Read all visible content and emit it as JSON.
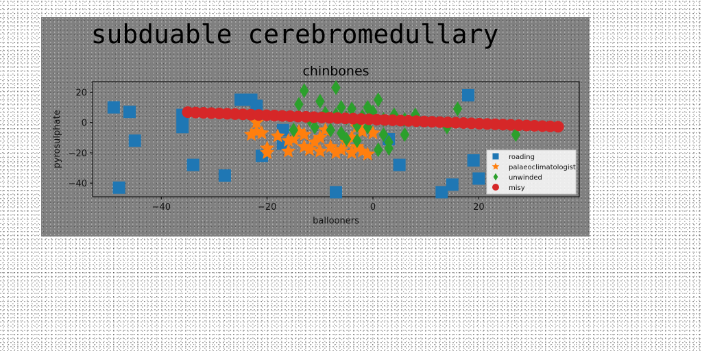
{
  "figure": {
    "suptitle": "subduable cerebromedullary"
  },
  "chart_data": {
    "type": "scatter",
    "title": "chinbones",
    "xlabel": "ballooners",
    "ylabel": "pyrosulphate",
    "xlim": [
      -53,
      39
    ],
    "ylim": [
      -49,
      27
    ],
    "xticks": [
      -40,
      -20,
      0,
      20
    ],
    "yticks": [
      20,
      0,
      -20,
      -40
    ],
    "grid": false,
    "legend_position": "right",
    "series": [
      {
        "name": "roading",
        "color": "#1f77b4",
        "marker": "square",
        "points": [
          [
            -49,
            10
          ],
          [
            -46,
            7
          ],
          [
            -45,
            -12
          ],
          [
            -48,
            -43
          ],
          [
            -36,
            5
          ],
          [
            -36,
            -3
          ],
          [
            -34,
            -28
          ],
          [
            -28,
            -35
          ],
          [
            -25,
            15
          ],
          [
            -23,
            15
          ],
          [
            -22,
            11
          ],
          [
            -21,
            -22
          ],
          [
            -17,
            -5
          ],
          [
            -17,
            -14
          ],
          [
            -7,
            -46
          ],
          [
            3,
            -11
          ],
          [
            5,
            -28
          ],
          [
            13,
            -46
          ],
          [
            15,
            -41
          ],
          [
            18,
            18
          ],
          [
            19,
            -25
          ],
          [
            20,
            -37
          ]
        ]
      },
      {
        "name": "palaeoclimatologist",
        "color": "#ff7f0e",
        "marker": "star",
        "points": [
          [
            -22,
            0
          ],
          [
            -22,
            -6
          ],
          [
            -23,
            -8
          ],
          [
            -21,
            -7
          ],
          [
            -20,
            -17
          ],
          [
            -20,
            -20
          ],
          [
            -16,
            -12
          ],
          [
            -15,
            -11
          ],
          [
            -16,
            -19
          ],
          [
            -13,
            -8
          ],
          [
            -13,
            -16
          ],
          [
            -12,
            -18
          ],
          [
            -11,
            -13
          ],
          [
            -10,
            -19
          ],
          [
            -10,
            -10
          ],
          [
            -8,
            -16
          ],
          [
            -7,
            -20
          ],
          [
            -6,
            -18
          ],
          [
            -5,
            -13
          ],
          [
            -4,
            -20
          ],
          [
            -4,
            -10
          ],
          [
            -3,
            -16
          ],
          [
            -2,
            -19
          ],
          [
            -2,
            -6
          ],
          [
            -1,
            -21
          ],
          [
            0,
            -7
          ],
          [
            -3,
            -3
          ],
          [
            -9,
            -5
          ],
          [
            -14,
            -6
          ],
          [
            -18,
            -9
          ]
        ]
      },
      {
        "name": "unwinded",
        "color": "#2ca02c",
        "marker": "diamond",
        "points": [
          [
            -13,
            21
          ],
          [
            -14,
            12
          ],
          [
            -10,
            14
          ],
          [
            -7,
            23
          ],
          [
            -9,
            6
          ],
          [
            -6,
            10
          ],
          [
            -5,
            3
          ],
          [
            -4,
            9
          ],
          [
            -3,
            -2
          ],
          [
            -2,
            4
          ],
          [
            -11,
            -3
          ],
          [
            -12,
            2
          ],
          [
            -8,
            -5
          ],
          [
            -6,
            -7
          ],
          [
            -5,
            -11
          ],
          [
            -3,
            -12
          ],
          [
            -1,
            10
          ],
          [
            0,
            7
          ],
          [
            1,
            15
          ],
          [
            2,
            2
          ],
          [
            2,
            -8
          ],
          [
            3,
            -17
          ],
          [
            1,
            -18
          ],
          [
            3,
            -13
          ],
          [
            4,
            5
          ],
          [
            6,
            -8
          ],
          [
            6,
            2
          ],
          [
            8,
            5
          ],
          [
            14,
            -3
          ],
          [
            16,
            9
          ],
          [
            27,
            -8
          ],
          [
            -15,
            -5
          ],
          [
            -7,
            5
          ],
          [
            -1,
            -3
          ]
        ]
      },
      {
        "name": "misy",
        "color": "#d62728",
        "marker": "circle",
        "line": {
          "x_from": -35,
          "y_from": 6.8,
          "x_to": 35,
          "y_to": -2.8,
          "n_points": 48
        }
      }
    ]
  }
}
